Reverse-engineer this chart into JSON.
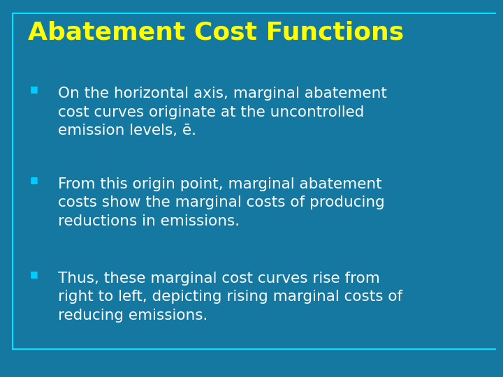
{
  "title": "Abatement Cost Functions",
  "title_color": "#FFFF00",
  "title_fontsize": 26,
  "background_color": "#1478A0",
  "border_color": "#00E5FF",
  "bullet_color": "#00CCFF",
  "text_color": "#FFFFFF",
  "text_fontsize": 15.5,
  "bullets": [
    "On the horizontal axis, marginal abatement\ncost curves originate at the uncontrolled\nemission levels, ē.",
    "From this origin point, marginal abatement\ncosts show the marginal costs of producing\nreductions in emissions.",
    "Thus, these marginal cost curves rise from\nright to left, depicting rising marginal costs of\nreducing emissions."
  ]
}
